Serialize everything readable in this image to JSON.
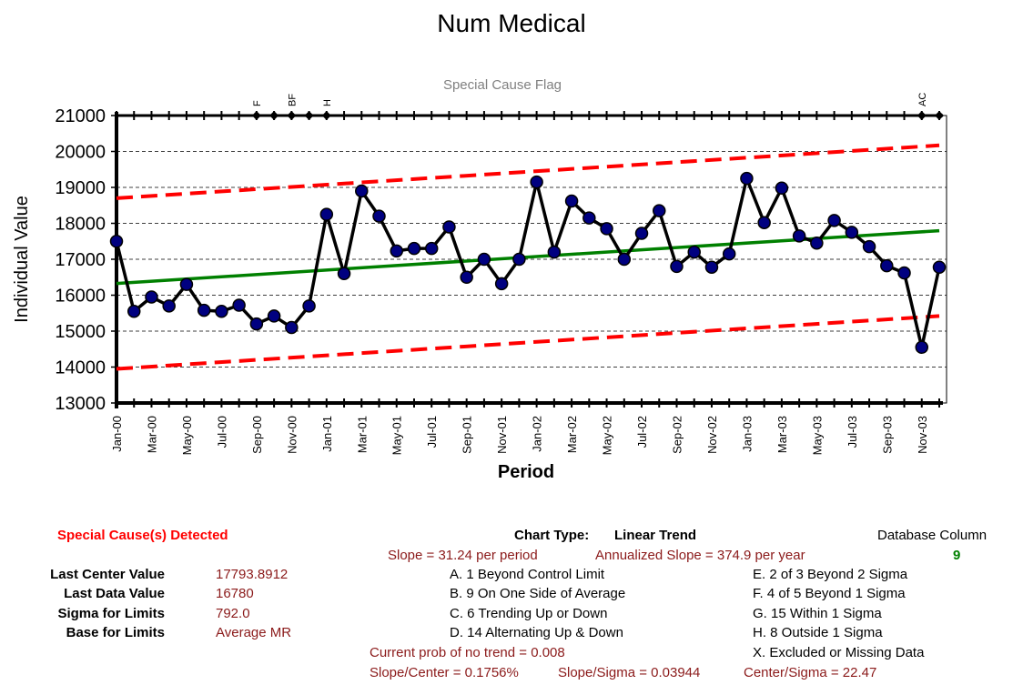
{
  "title": "Num Medical",
  "chart_data": {
    "type": "line",
    "subtitle": "Special Cause Flag",
    "xlabel": "Period",
    "ylabel": "Individual Value",
    "ylim": [
      13000,
      21000
    ],
    "yticks": [
      13000,
      14000,
      15000,
      16000,
      17000,
      18000,
      19000,
      20000,
      21000
    ],
    "grid": true,
    "categories": [
      "Jan-00",
      "Feb-00",
      "Mar-00",
      "Apr-00",
      "May-00",
      "Jun-00",
      "Jul-00",
      "Aug-00",
      "Sep-00",
      "Oct-00",
      "Nov-00",
      "Dec-00",
      "Jan-01",
      "Feb-01",
      "Mar-01",
      "Apr-01",
      "May-01",
      "Jun-01",
      "Jul-01",
      "Aug-01",
      "Sep-01",
      "Oct-01",
      "Nov-01",
      "Dec-01",
      "Jan-02",
      "Feb-02",
      "Mar-02",
      "Apr-02",
      "May-02",
      "Jun-02",
      "Jul-02",
      "Aug-02",
      "Sep-02",
      "Oct-02",
      "Nov-02",
      "Dec-02",
      "Jan-03",
      "Feb-03",
      "Mar-03",
      "Apr-03",
      "May-03",
      "Jun-03",
      "Jul-03",
      "Aug-03",
      "Sep-03",
      "Oct-03",
      "Nov-03",
      "Dec-03"
    ],
    "xtick_labels": [
      "Jan-00",
      "Mar-00",
      "May-00",
      "Jul-00",
      "Sep-00",
      "Nov-00",
      "Jan-01",
      "Mar-01",
      "May-01",
      "Jul-01",
      "Sep-01",
      "Nov-01",
      "Jan-02",
      "Mar-02",
      "May-02",
      "Jul-02",
      "Sep-02",
      "Nov-02",
      "Jan-03",
      "Mar-03",
      "May-03",
      "Jul-03",
      "Sep-03",
      "Nov-03"
    ],
    "series": [
      {
        "values": [
          17500,
          15550,
          15950,
          15700,
          16300,
          15580,
          15550,
          15720,
          15200,
          15420,
          15100,
          15700,
          18250,
          16600,
          18900,
          18200,
          17230,
          17300,
          17300,
          17900,
          16500,
          17000,
          16320,
          17000,
          19150,
          17200,
          18620,
          18150,
          17850,
          17000,
          17720,
          18350,
          16800,
          17200,
          16780,
          17150,
          19250,
          18020,
          18980,
          17650,
          17450,
          18080,
          17750,
          17350,
          16820,
          16620,
          14550,
          16780
        ],
        "color": "#000000",
        "marker_color": "#000080"
      }
    ],
    "center_line": {
      "start": 16325,
      "end": 17795,
      "color": "#008000"
    },
    "ucl": {
      "start": 18700,
      "end": 20170,
      "color": "#ff0000"
    },
    "lcl": {
      "start": 13950,
      "end": 15420,
      "color": "#ff0000"
    },
    "special_cause_flags": [
      {
        "index": 8,
        "label": "F"
      },
      {
        "index": 9,
        "label": ""
      },
      {
        "index": 10,
        "label": "BF"
      },
      {
        "index": 11,
        "label": ""
      },
      {
        "index": 12,
        "label": "H"
      },
      {
        "index": 46,
        "label": "AC"
      },
      {
        "index": 47,
        "label": ""
      }
    ]
  },
  "stats": {
    "special_cause_label": "Special Cause(s) Detected",
    "rows": [
      {
        "label": "Last Center Value",
        "value": "17793.8912"
      },
      {
        "label": "Last Data Value",
        "value": "16780"
      },
      {
        "label": "Sigma for Limits",
        "value": "792.0"
      },
      {
        "label": "Base for Limits",
        "value": "Average MR"
      }
    ],
    "chart_type_label": "Chart Type:",
    "chart_type_value": "Linear Trend",
    "slope": "Slope = 31.24 per period",
    "annualized_slope": "Annualized Slope = 374.9 per year",
    "database_column_label": "Database Column",
    "database_column_value": "9",
    "rules_left": [
      "A. 1 Beyond Control Limit",
      "B. 9 On One Side of Average",
      "C. 6 Trending Up or Down",
      "D. 14 Alternating  Up & Down"
    ],
    "rules_right": [
      "E.  2 of 3 Beyond 2 Sigma",
      "F.  4 of 5 Beyond 1 Sigma",
      "G.  15 Within 1 Sigma",
      "H.  8 Outside 1 Sigma",
      "X.  Excluded or Missing Data"
    ],
    "prob_no_trend": "Current prob of no trend = 0.008",
    "slope_center": "Slope/Center = 0.1756%",
    "slope_sigma": "Slope/Sigma = 0.03944",
    "center_sigma": "Center/Sigma = 22.47"
  }
}
